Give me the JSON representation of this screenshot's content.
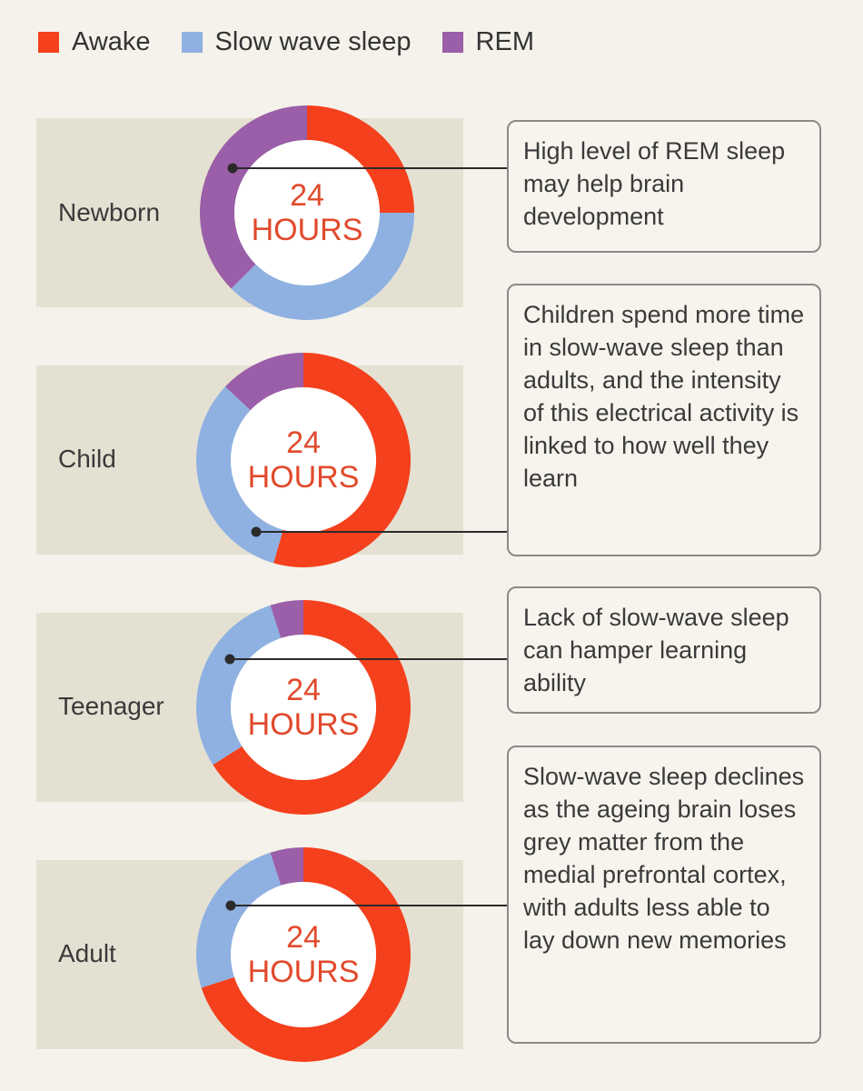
{
  "colors": {
    "awake": "#f4401c",
    "slow_wave": "#8fb1e2",
    "rem": "#9b5ea8",
    "center_text": "#e14a2c",
    "band": "#e4e1d3",
    "background": "#f4f2ea"
  },
  "legend": [
    {
      "key": "awake",
      "label": "Awake"
    },
    {
      "key": "slow_wave",
      "label": "Slow wave sleep"
    },
    {
      "key": "rem",
      "label": "REM"
    }
  ],
  "chart_data": [
    {
      "type": "pie",
      "label": "Newborn",
      "center_text": [
        "24",
        "HOURS"
      ],
      "slices": [
        {
          "name": "Awake",
          "value": 25
        },
        {
          "name": "Slow wave sleep",
          "value": 37.5
        },
        {
          "name": "REM",
          "value": 37.5
        }
      ],
      "callout": "High level of REM sleep may help brain development"
    },
    {
      "type": "pie",
      "label": "Child",
      "center_text": [
        "24",
        "HOURS"
      ],
      "slices": [
        {
          "name": "Awake",
          "value": 54.5
        },
        {
          "name": "Slow wave sleep",
          "value": 32.5
        },
        {
          "name": "REM",
          "value": 13
        }
      ],
      "callout": "Children spend more time in slow-wave sleep than adults, and the intensity of this electrical activity is linked to how well they learn"
    },
    {
      "type": "pie",
      "label": "Teenager",
      "center_text": [
        "24",
        "HOURS"
      ],
      "slices": [
        {
          "name": "Awake",
          "value": 66
        },
        {
          "name": "Slow wave sleep",
          "value": 29
        },
        {
          "name": "REM",
          "value": 5
        }
      ],
      "callout": "Lack of slow-wave sleep can hamper learning ability"
    },
    {
      "type": "pie",
      "label": "Adult",
      "center_text": [
        "24",
        "HOURS"
      ],
      "slices": [
        {
          "name": "Awake",
          "value": 70
        },
        {
          "name": "Slow wave sleep",
          "value": 25
        },
        {
          "name": "REM",
          "value": 5
        }
      ],
      "callout": "Slow-wave sleep declines as the ageing brain loses grey matter from the medial prefrontal cortex, with adults less able to lay down new memories"
    }
  ]
}
